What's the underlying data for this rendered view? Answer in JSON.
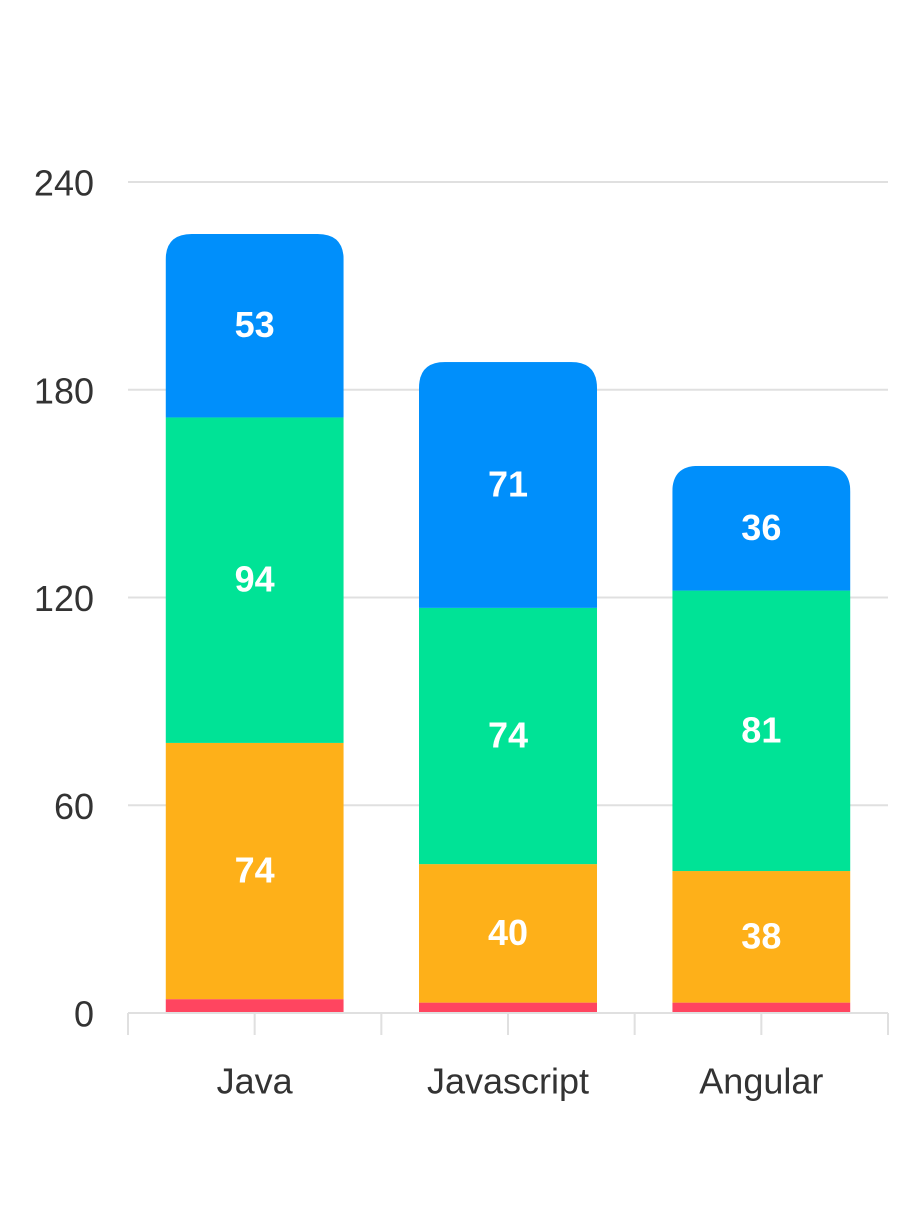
{
  "chart_data": {
    "type": "bar",
    "stacked": true,
    "categories": [
      "Java",
      "Javascript",
      "Angular"
    ],
    "series": [
      {
        "values": [
          4,
          3,
          3
        ],
        "color": "#ff4560",
        "show_labels": false
      },
      {
        "values": [
          74,
          40,
          38
        ],
        "color": "#feb019",
        "show_labels": true
      },
      {
        "values": [
          94,
          74,
          81
        ],
        "color": "#00e396",
        "show_labels": true
      },
      {
        "values": [
          53,
          71,
          36
        ],
        "color": "#008ffb",
        "show_labels": true
      }
    ],
    "y_ticks": [
      "0",
      "60",
      "120",
      "180",
      "240"
    ],
    "ylim": [
      0,
      240
    ],
    "grid": true,
    "legend": "none"
  }
}
